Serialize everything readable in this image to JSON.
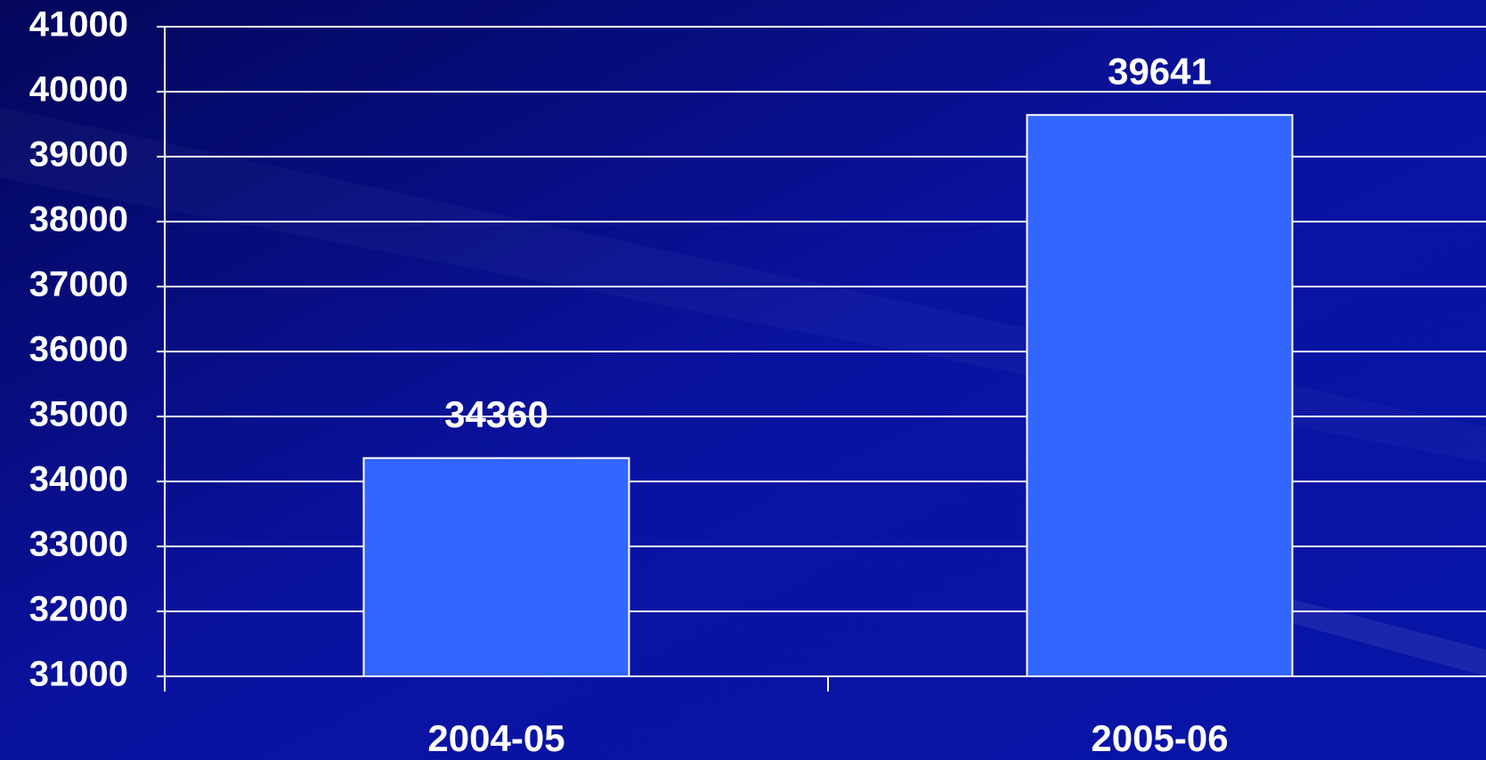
{
  "chart_data": {
    "type": "bar",
    "categories": [
      "2004-05",
      "2005-06"
    ],
    "values": [
      34360,
      39641
    ],
    "color": "#3366ff",
    "ylim": [
      31000,
      41000
    ],
    "yticks": [
      31000,
      32000,
      33000,
      34000,
      35000,
      36000,
      37000,
      38000,
      39000,
      40000,
      41000
    ],
    "grid": true
  }
}
